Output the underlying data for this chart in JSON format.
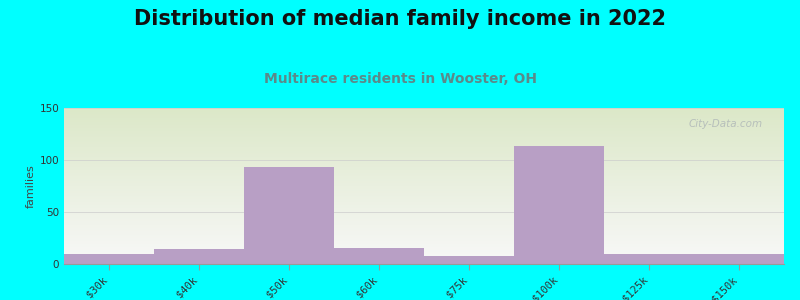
{
  "title": "Distribution of median family income in 2022",
  "subtitle": "Multirace residents in Wooster, OH",
  "categories": [
    "$30k",
    "$40k",
    "$50k",
    "$60k",
    "$75k",
    "$100k",
    "$125k",
    ">$150k"
  ],
  "values": [
    10,
    14,
    93,
    15,
    8,
    113,
    10,
    10
  ],
  "bar_color": "#b89fc5",
  "background_color": "#00ffff",
  "plot_bg_top_color": "#dce8c8",
  "plot_bg_bottom_color": "#f8f8f8",
  "ylabel": "families",
  "ylim": [
    0,
    150
  ],
  "yticks": [
    0,
    50,
    100,
    150
  ],
  "title_fontsize": 15,
  "subtitle_fontsize": 10,
  "tick_label_fontsize": 7.5,
  "watermark": "City-Data.com",
  "subtitle_color": "#5a8a8a",
  "title_color": "#111111",
  "watermark_color": "#b0b8b8",
  "ylabel_color": "#444444",
  "ylabel_fontsize": 8
}
